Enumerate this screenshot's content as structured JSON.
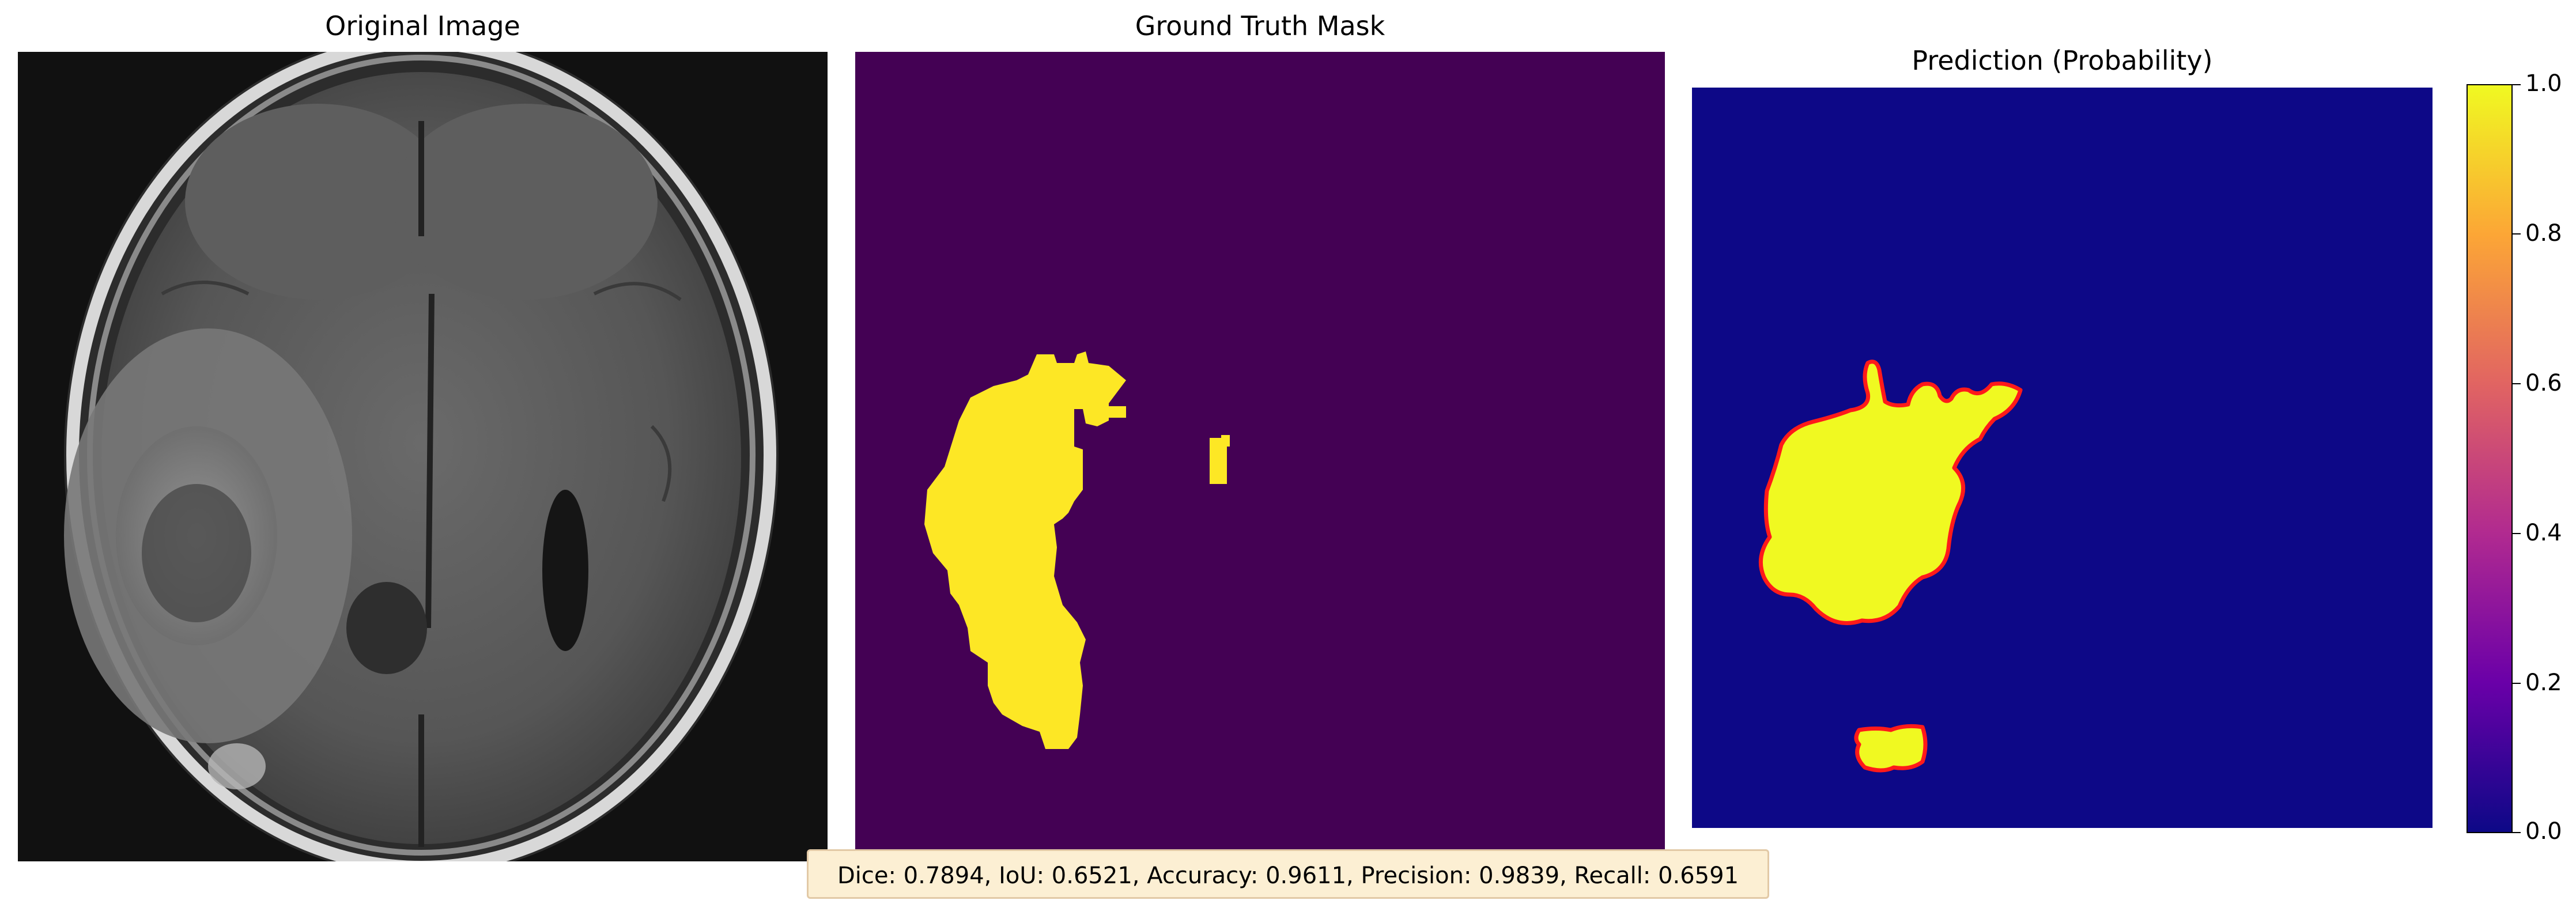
{
  "panels": {
    "original": {
      "title": "Original Image"
    },
    "ground_truth": {
      "title": "Ground Truth Mask"
    },
    "prediction": {
      "title": "Prediction (Probability)"
    }
  },
  "colorbar": {
    "ticks": [
      "1.0",
      "0.8",
      "0.6",
      "0.4",
      "0.2",
      "0.0"
    ],
    "range": [
      0.0,
      1.0
    ]
  },
  "metrics_text": "Dice: 0.7894, IoU: 0.6521, Accuracy: 0.9611, Precision: 0.9839, Recall: 0.6591",
  "colors": {
    "gt_background": "#440154",
    "gt_foreground": "#fde725",
    "pred_background": "#0d0887",
    "pred_foreground": "#f0f921",
    "pred_outline": "#ff1a1a"
  }
}
